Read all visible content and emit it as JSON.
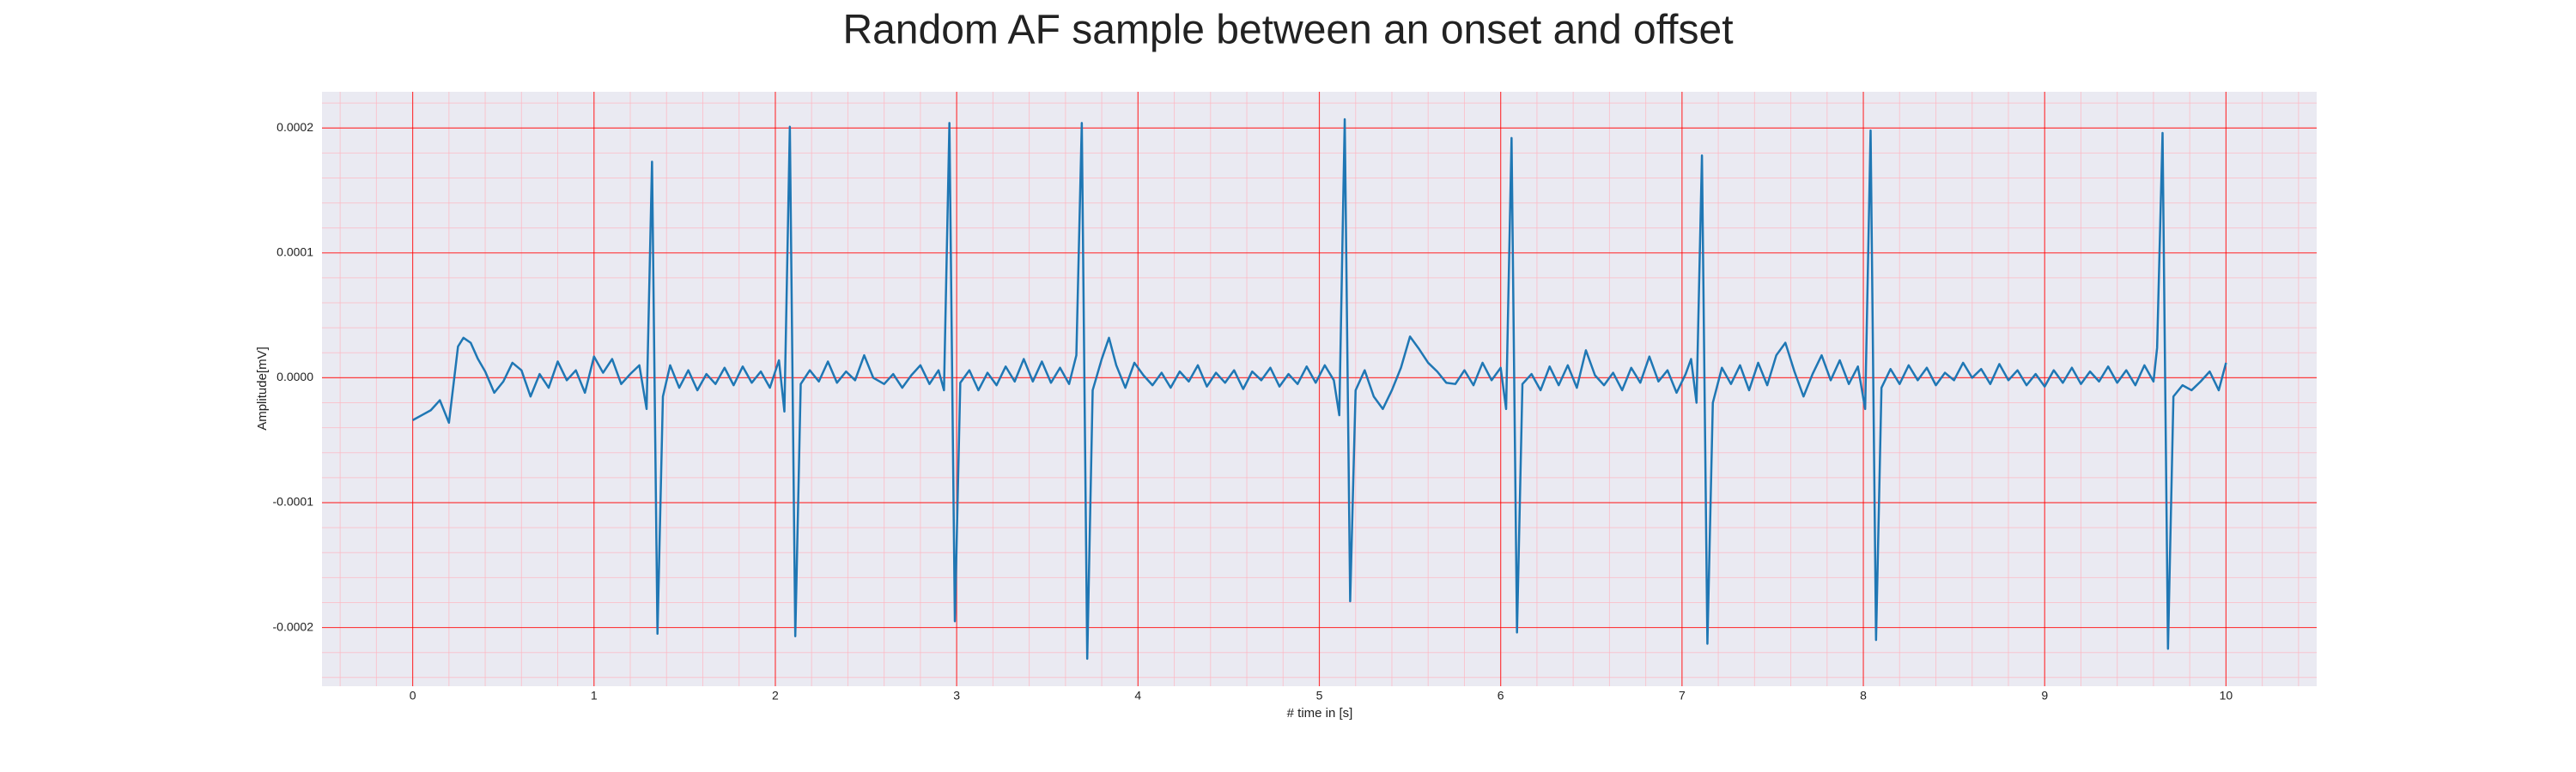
{
  "chart_data": {
    "type": "line",
    "title": "Random AF sample between an onset and offset",
    "x_label": "# time in [s]",
    "y_label": "Amplitude[mV]",
    "xlim": [
      -0.5,
      10.5
    ],
    "ylim": [
      -0.000247,
      0.000229
    ],
    "xticks": [
      0,
      1,
      2,
      3,
      4,
      5,
      6,
      7,
      8,
      9,
      10
    ],
    "yticks": [
      {
        "value": -0.0002,
        "label": "-0.0002"
      },
      {
        "value": -0.0001,
        "label": "-0.0001"
      },
      {
        "value": 0,
        "label": "0.0000"
      },
      {
        "value": 0.0001,
        "label": "0.0001"
      },
      {
        "value": 0.0002,
        "label": "0.0002"
      }
    ],
    "grid": true,
    "grid_color": "#ff0000",
    "minor_grid": true,
    "minor_grid_color": "#ffb6c1",
    "background": "#eaeaf2",
    "series": [
      {
        "name": "AF sample",
        "color": "#1f77b4",
        "x": [
          0,
          0.05,
          0.1,
          0.15,
          0.2,
          0.25,
          0.28,
          0.32,
          0.36,
          0.4,
          0.45,
          0.5,
          0.55,
          0.6,
          0.65,
          0.7,
          0.75,
          0.8,
          0.85,
          0.9,
          0.95,
          1.0,
          1.05,
          1.1,
          1.15,
          1.2,
          1.25,
          1.29,
          1.32,
          1.35,
          1.38,
          1.42,
          1.47,
          1.52,
          1.57,
          1.62,
          1.67,
          1.72,
          1.77,
          1.82,
          1.87,
          1.92,
          1.97,
          2.02,
          2.05,
          2.08,
          2.11,
          2.14,
          2.19,
          2.24,
          2.29,
          2.34,
          2.39,
          2.44,
          2.49,
          2.54,
          2.6,
          2.65,
          2.7,
          2.75,
          2.8,
          2.85,
          2.9,
          2.93,
          2.96,
          2.99,
          3.02,
          3.07,
          3.12,
          3.17,
          3.22,
          3.27,
          3.32,
          3.37,
          3.42,
          3.47,
          3.52,
          3.57,
          3.62,
          3.66,
          3.69,
          3.72,
          3.75,
          3.8,
          3.84,
          3.88,
          3.93,
          3.98,
          4.03,
          4.08,
          4.13,
          4.18,
          4.23,
          4.28,
          4.33,
          4.38,
          4.43,
          4.48,
          4.53,
          4.58,
          4.63,
          4.68,
          4.73,
          4.78,
          4.83,
          4.88,
          4.93,
          4.98,
          5.03,
          5.08,
          5.11,
          5.14,
          5.17,
          5.2,
          5.25,
          5.3,
          5.35,
          5.4,
          5.45,
          5.5,
          5.55,
          5.6,
          5.65,
          5.7,
          5.75,
          5.8,
          5.85,
          5.9,
          5.95,
          6.0,
          6.03,
          6.06,
          6.09,
          6.12,
          6.17,
          6.22,
          6.27,
          6.32,
          6.37,
          6.42,
          6.47,
          6.52,
          6.57,
          6.62,
          6.67,
          6.72,
          6.77,
          6.82,
          6.87,
          6.92,
          6.97,
          7.02,
          7.05,
          7.08,
          7.11,
          7.14,
          7.17,
          7.22,
          7.27,
          7.32,
          7.37,
          7.42,
          7.47,
          7.52,
          7.57,
          7.62,
          7.67,
          7.72,
          7.77,
          7.82,
          7.87,
          7.92,
          7.97,
          8.01,
          8.04,
          8.07,
          8.1,
          8.15,
          8.2,
          8.25,
          8.3,
          8.35,
          8.4,
          8.45,
          8.5,
          8.55,
          8.6,
          8.65,
          8.7,
          8.75,
          8.8,
          8.85,
          8.9,
          8.95,
          9.0,
          9.05,
          9.1,
          9.15,
          9.2,
          9.25,
          9.3,
          9.35,
          9.4,
          9.45,
          9.5,
          9.55,
          9.6,
          9.62,
          9.65,
          9.68,
          9.71,
          9.76,
          9.81,
          9.86,
          9.91,
          9.96,
          10.0
        ],
        "values": [
          -3.4e-05,
          -3e-05,
          -2.6e-05,
          -1.8e-05,
          -3.6e-05,
          2.5e-05,
          3.2e-05,
          2.8e-05,
          1.5e-05,
          5e-06,
          -1.2e-05,
          -3e-06,
          1.2e-05,
          6e-06,
          -1.5e-05,
          3e-06,
          -8e-06,
          1.3e-05,
          -2e-06,
          6e-06,
          -1.2e-05,
          1.7e-05,
          4e-06,
          1.5e-05,
          -5e-06,
          3e-06,
          1e-05,
          -2.5e-05,
          0.000173,
          -0.000205,
          -1.5e-05,
          1e-05,
          -8e-06,
          6e-06,
          -1e-05,
          3e-06,
          -5e-06,
          8e-06,
          -6e-06,
          9e-06,
          -4e-06,
          5e-06,
          -8e-06,
          1.4e-05,
          -2.7e-05,
          0.000201,
          -0.000207,
          -5e-06,
          6e-06,
          -3e-06,
          1.3e-05,
          -4e-06,
          5e-06,
          -2e-06,
          1.8e-05,
          0,
          -5e-06,
          3e-06,
          -8e-06,
          2e-06,
          1e-05,
          -5e-06,
          6e-06,
          -1e-05,
          0.000204,
          -0.000195,
          -4e-06,
          6e-06,
          -1e-05,
          4e-06,
          -6e-06,
          9e-06,
          -3e-06,
          1.5e-05,
          -3e-06,
          1.3e-05,
          -4e-06,
          8e-06,
          -5e-06,
          1.8e-05,
          0.000204,
          -0.000225,
          -1e-05,
          1.5e-05,
          3.2e-05,
          1e-05,
          -8e-06,
          1.2e-05,
          2e-06,
          -6e-06,
          4e-06,
          -8e-06,
          5e-06,
          -3e-06,
          1e-05,
          -7e-06,
          4e-06,
          -4e-06,
          6e-06,
          -9e-06,
          5e-06,
          -2e-06,
          8e-06,
          -7e-06,
          3e-06,
          -5e-06,
          9e-06,
          -4e-06,
          1e-05,
          -2e-06,
          -3e-05,
          0.000207,
          -0.000179,
          -1e-05,
          6e-06,
          -1.5e-05,
          -2.5e-05,
          -1e-05,
          8e-06,
          3.3e-05,
          2.3e-05,
          1.2e-05,
          5e-06,
          -4e-06,
          -5e-06,
          6e-06,
          -6e-06,
          1.2e-05,
          -2e-06,
          8e-06,
          -2.5e-05,
          0.000192,
          -0.000204,
          -5e-06,
          3e-06,
          -1e-05,
          9e-06,
          -6e-06,
          1e-05,
          -8e-06,
          2.2e-05,
          2e-06,
          -6e-06,
          4e-06,
          -1e-05,
          8e-06,
          -4e-06,
          1.7e-05,
          -3e-06,
          6e-06,
          -1.2e-05,
          3e-06,
          1.5e-05,
          -2e-05,
          0.000178,
          -0.000213,
          -2e-05,
          8e-06,
          -5e-06,
          1e-05,
          -1e-05,
          1.2e-05,
          -6e-06,
          1.8e-05,
          2.8e-05,
          5e-06,
          -1.5e-05,
          3e-06,
          1.8e-05,
          -2e-06,
          1.4e-05,
          -5e-06,
          9e-06,
          -2.5e-05,
          0.000198,
          -0.00021,
          -8e-06,
          7e-06,
          -5e-06,
          1e-05,
          -2e-06,
          8e-06,
          -6e-06,
          4e-06,
          -2e-06,
          1.2e-05,
          0,
          7e-06,
          -5e-06,
          1.1e-05,
          -2e-06,
          6e-06,
          -6e-06,
          3e-06,
          -7e-06,
          6e-06,
          -4e-06,
          8e-06,
          -5e-06,
          5e-06,
          -3e-06,
          9e-06,
          -4e-06,
          6e-06,
          -6e-06,
          1e-05,
          -3e-06,
          2.4e-05,
          0.000196,
          -0.000217,
          -1.5e-05,
          -6e-06,
          -1e-05,
          -3e-06,
          5e-06,
          -1e-05,
          1.2e-05
        ]
      }
    ]
  }
}
